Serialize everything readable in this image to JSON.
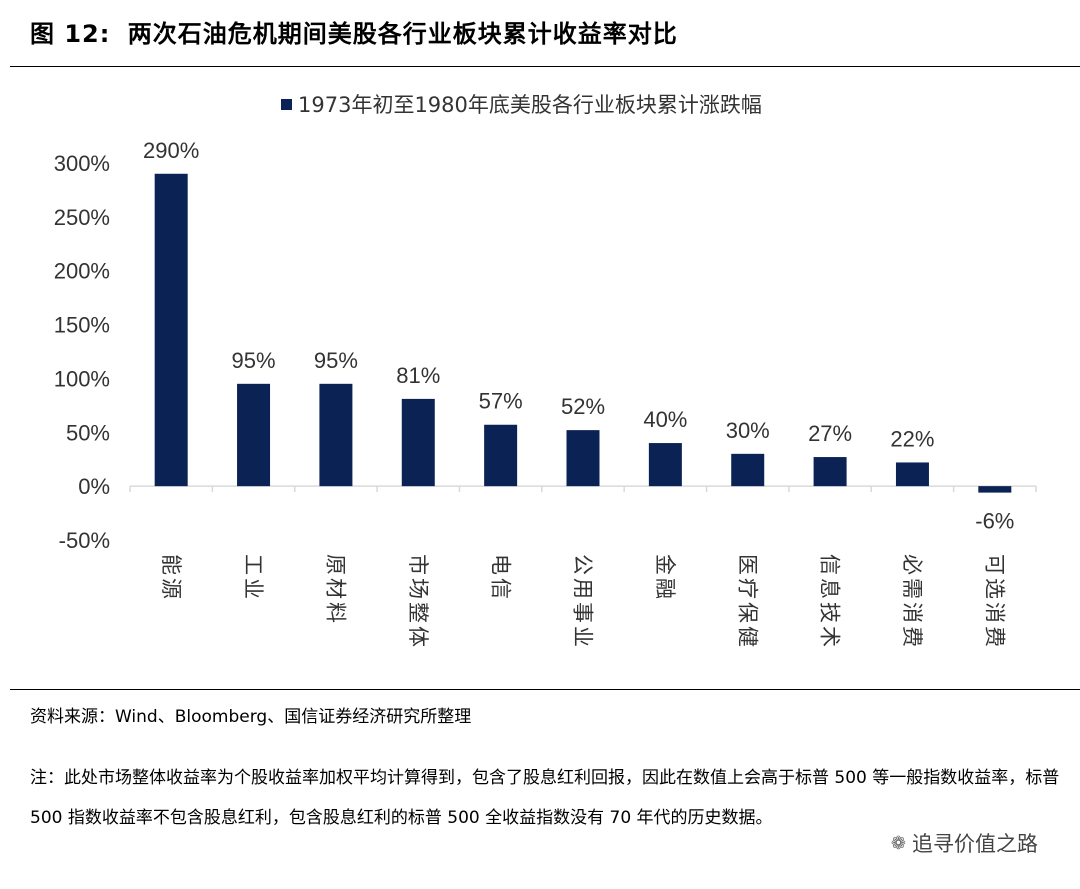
{
  "figure": {
    "label": "图 12:",
    "title": "两次石油危机期间美股各行业板块累计收益率对比"
  },
  "source": "资料来源：Wind、Bloomberg、国信证券经济研究所整理",
  "note": "注：此处市场整体收益率为个股收益率加权平均计算得到，包含了股息红利回报，因此在数值上会高于标普 500 等一般指数收益率，标普 500 指数收益率不包含股息红利，包含股息红利的标普 500 全收益指数没有 70 年代的历史数据。",
  "watermark": "追寻价值之路",
  "chart_data": {
    "type": "bar",
    "legend_position": "top",
    "categories": [
      "能源",
      "工业",
      "原材料",
      "市场整体",
      "电信",
      "公用事业",
      "金融",
      "医疗保健",
      "信息技术",
      "必需消费",
      "可选消费"
    ],
    "series": [
      {
        "name": "1973年初至1980年底美股各行业板块累计涨跌幅",
        "values": [
          290,
          95,
          95,
          81,
          57,
          52,
          40,
          30,
          27,
          22,
          -6
        ],
        "data_labels": [
          "290%",
          "95%",
          "95%",
          "81%",
          "57%",
          "52%",
          "40%",
          "30%",
          "27%",
          "22%",
          "-6%"
        ],
        "color": "#0b2354"
      }
    ],
    "ylim": [
      -50,
      300
    ],
    "yticks": [
      -50,
      0,
      50,
      100,
      150,
      200,
      250,
      300
    ],
    "ytick_labels": [
      "-50%",
      "0%",
      "50%",
      "100%",
      "150%",
      "200%",
      "250%",
      "300%"
    ],
    "grid": false
  }
}
